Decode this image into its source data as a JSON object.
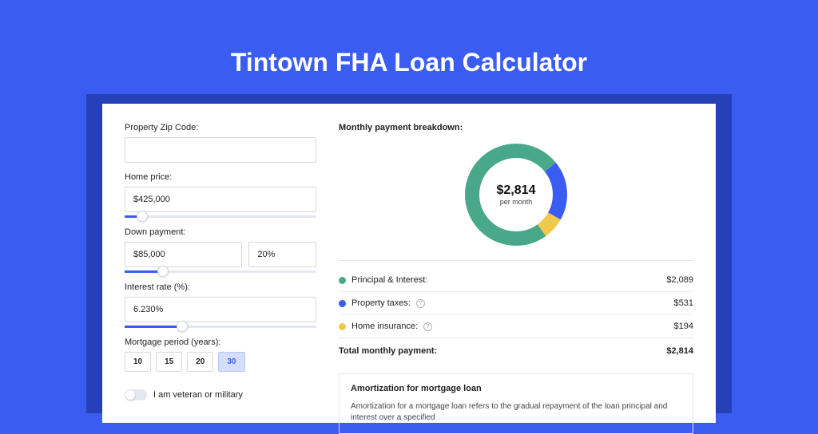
{
  "page": {
    "title": "Tintown FHA Loan Calculator",
    "background_color": "#3a5cf0"
  },
  "form": {
    "zip": {
      "label": "Property Zip Code:",
      "value": ""
    },
    "home_price": {
      "label": "Home price:",
      "value": "$425,000",
      "slider_pct": 9
    },
    "down_payment": {
      "label": "Down payment:",
      "amount": "$85,000",
      "percent": "20%",
      "slider_pct": 20
    },
    "interest_rate": {
      "label": "Interest rate (%):",
      "value": "6.230%",
      "slider_pct": 30
    },
    "mortgage_period": {
      "label": "Mortgage period (years):",
      "options": [
        "10",
        "15",
        "20",
        "30"
      ],
      "selected_index": 3
    },
    "veteran": {
      "label": "I am veteran or military",
      "checked": false
    }
  },
  "breakdown": {
    "title": "Monthly payment breakdown:",
    "center_amount": "$2,814",
    "center_sub": "per month",
    "donut": {
      "segments": [
        {
          "key": "principal_interest",
          "value": 2089,
          "color": "#4aa88a",
          "pct": 74.2
        },
        {
          "key": "property_taxes",
          "value": 531,
          "color": "#3a5cf0",
          "pct": 18.9
        },
        {
          "key": "home_insurance",
          "value": 194,
          "color": "#f0c94a",
          "pct": 6.9
        }
      ],
      "thickness": 18,
      "radius": 55
    },
    "items": [
      {
        "label": "Principal & Interest:",
        "value": "$2,089",
        "color": "#4aa88a",
        "info": false
      },
      {
        "label": "Property taxes:",
        "value": "$531",
        "color": "#3a5cf0",
        "info": true
      },
      {
        "label": "Home insurance:",
        "value": "$194",
        "color": "#f0c94a",
        "info": true
      }
    ],
    "total": {
      "label": "Total monthly payment:",
      "value": "$2,814"
    }
  },
  "amortization": {
    "title": "Amortization for mortgage loan",
    "text": "Amortization for a mortgage loan refers to the gradual repayment of the loan principal and interest over a specified"
  }
}
